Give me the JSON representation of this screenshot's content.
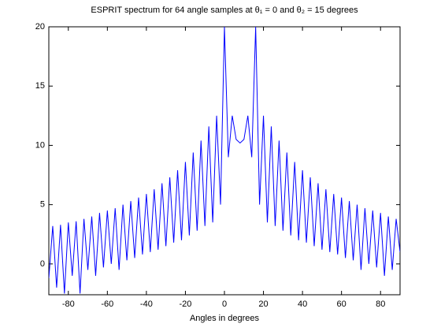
{
  "chart_data": {
    "type": "line",
    "title": "ESPRIT spectrum for 64 angle samples at θ₁ = 0 and θ₂ = 15 degrees",
    "xlabel": "Angles in degrees",
    "x": [
      -90,
      -88,
      -86,
      -84,
      -82,
      -80,
      -78,
      -76,
      -74,
      -72,
      -70,
      -68,
      -66,
      -64,
      -62,
      -60,
      -58,
      -56,
      -54,
      -52,
      -50,
      -48,
      -46,
      -44,
      -42,
      -40,
      -38,
      -36,
      -34,
      -32,
      -30,
      -28,
      -26,
      -24,
      -22,
      -20,
      -18,
      -16,
      -14,
      -12,
      -10,
      -8,
      -6,
      -4,
      -2,
      0,
      2,
      4,
      6,
      8,
      10,
      12,
      14,
      16,
      18,
      20,
      22,
      24,
      26,
      28,
      30,
      32,
      34,
      36,
      38,
      40,
      42,
      44,
      46,
      48,
      50,
      52,
      54,
      56,
      58,
      60,
      62,
      64,
      66,
      68,
      70,
      72,
      74,
      76,
      78,
      80,
      82,
      84,
      86,
      88,
      90
    ],
    "series": [
      {
        "name": "spectrum",
        "color": "#0000ff",
        "values": [
          -1.2,
          3.2,
          -2.0,
          3.3,
          -2.5,
          3.5,
          -1.0,
          3.6,
          -2.5,
          3.8,
          -0.5,
          4.0,
          -1.0,
          4.3,
          -0.3,
          4.5,
          0,
          4.7,
          -0.5,
          5.0,
          0.3,
          5.3,
          0.5,
          5.6,
          0.8,
          5.9,
          1.0,
          6.3,
          1.2,
          6.8,
          1.5,
          7.3,
          1.8,
          7.9,
          2.0,
          8.6,
          2.4,
          9.4,
          2.8,
          10.4,
          3.2,
          11.6,
          3.5,
          12.5,
          5,
          20,
          9,
          12.5,
          10.5,
          10.2,
          10.5,
          12.5,
          9,
          20,
          5,
          12.5,
          3.5,
          11.6,
          3.2,
          10.4,
          2.8,
          9.4,
          2.4,
          8.6,
          2.0,
          7.9,
          1.8,
          7.3,
          1.5,
          6.8,
          1.2,
          6.3,
          1.0,
          5.9,
          0.8,
          5.6,
          0.5,
          5.3,
          0.3,
          5.0,
          -0.5,
          4.7,
          0,
          4.5,
          -0.3,
          4.3,
          -1.0,
          4.0,
          -0.5,
          3.8,
          1.0
        ]
      }
    ],
    "xlim": [
      -90,
      90
    ],
    "xticks": [
      -80,
      -60,
      -40,
      -20,
      0,
      20,
      40,
      60,
      80
    ],
    "ylim": [
      -2.6,
      20
    ],
    "yticks": [
      0,
      5,
      10,
      15,
      20
    ]
  }
}
